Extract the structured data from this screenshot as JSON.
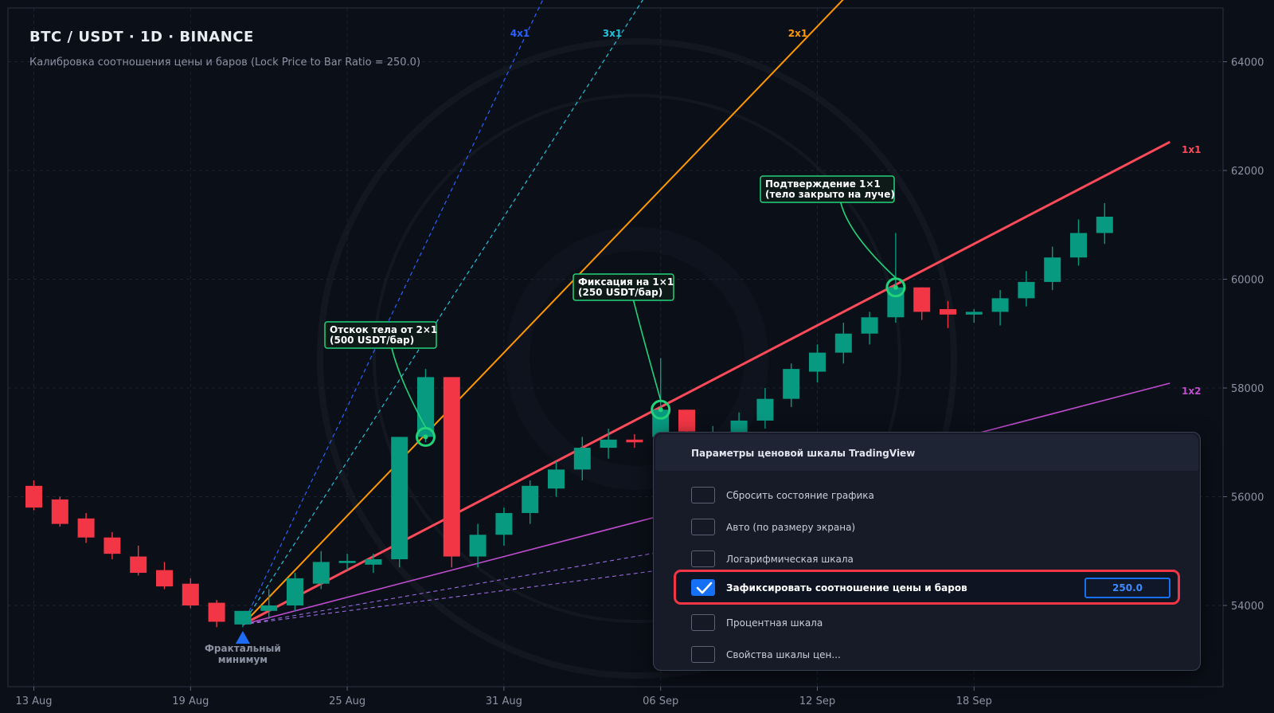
{
  "header": {
    "title": "BTC / USDT  ·  1D  ·  BINANCE",
    "subtitle": "Калибровка соотношения цены и баров (Lock Price to Bar Ratio = 250.0)"
  },
  "chart_data": {
    "type": "candlestick",
    "symbol": "BTC / USDT",
    "interval": "1D",
    "exchange": "BINANCE",
    "y_ticks": [
      54000,
      56000,
      58000,
      60000,
      62000,
      64000
    ],
    "ylim": [
      52600,
      65000
    ],
    "x_ticks": [
      "13 Aug",
      "19 Aug",
      "25 Aug",
      "31 Aug",
      "06 Sep",
      "12 Sep",
      "18 Sep"
    ],
    "x_tick_index": [
      0,
      6,
      12,
      18,
      24,
      30,
      36
    ],
    "candles": [
      {
        "o": 56200,
        "h": 56300,
        "l": 55750,
        "c": 55800
      },
      {
        "o": 55950,
        "h": 56000,
        "l": 55450,
        "c": 55500
      },
      {
        "o": 55600,
        "h": 55700,
        "l": 55150,
        "c": 55250
      },
      {
        "o": 55250,
        "h": 55350,
        "l": 54850,
        "c": 54950
      },
      {
        "o": 54900,
        "h": 55100,
        "l": 54550,
        "c": 54600
      },
      {
        "o": 54650,
        "h": 54800,
        "l": 54300,
        "c": 54350
      },
      {
        "o": 54400,
        "h": 54500,
        "l": 53950,
        "c": 54000
      },
      {
        "o": 54050,
        "h": 54100,
        "l": 53600,
        "c": 53700
      },
      {
        "o": 53650,
        "h": 53900,
        "l": 53600,
        "c": 53900
      },
      {
        "o": 53900,
        "h": 54300,
        "l": 53750,
        "c": 54000
      },
      {
        "o": 54000,
        "h": 54600,
        "l": 53900,
        "c": 54500
      },
      {
        "o": 54400,
        "h": 55000,
        "l": 54300,
        "c": 54800
      },
      {
        "o": 54780,
        "h": 54950,
        "l": 54650,
        "c": 54820
      },
      {
        "o": 54750,
        "h": 54950,
        "l": 54600,
        "c": 54850
      },
      {
        "o": 54850,
        "h": 57100,
        "l": 54700,
        "c": 57100
      },
      {
        "o": 57100,
        "h": 58350,
        "l": 57000,
        "c": 58200
      },
      {
        "o": 58200,
        "h": 58200,
        "l": 54700,
        "c": 54900
      },
      {
        "o": 54900,
        "h": 55500,
        "l": 54700,
        "c": 55300
      },
      {
        "o": 55300,
        "h": 55800,
        "l": 55100,
        "c": 55700
      },
      {
        "o": 55700,
        "h": 56300,
        "l": 55500,
        "c": 56200
      },
      {
        "o": 56150,
        "h": 56650,
        "l": 56000,
        "c": 56500
      },
      {
        "o": 56500,
        "h": 57100,
        "l": 56300,
        "c": 56900
      },
      {
        "o": 56900,
        "h": 57250,
        "l": 56700,
        "c": 57050
      },
      {
        "o": 57050,
        "h": 57150,
        "l": 56900,
        "c": 57000
      },
      {
        "o": 57100,
        "h": 58550,
        "l": 57000,
        "c": 57600
      },
      {
        "o": 57600,
        "h": 57600,
        "l": 57000,
        "c": 57200
      },
      {
        "o": 57050,
        "h": 57300,
        "l": 56950,
        "c": 57150
      },
      {
        "o": 57100,
        "h": 57550,
        "l": 57000,
        "c": 57400
      },
      {
        "o": 57400,
        "h": 58000,
        "l": 57250,
        "c": 57800
      },
      {
        "o": 57800,
        "h": 58450,
        "l": 57650,
        "c": 58350
      },
      {
        "o": 58300,
        "h": 58800,
        "l": 58100,
        "c": 58650
      },
      {
        "o": 58650,
        "h": 59200,
        "l": 58450,
        "c": 59000
      },
      {
        "o": 59000,
        "h": 59400,
        "l": 58800,
        "c": 59300
      },
      {
        "o": 59300,
        "h": 60850,
        "l": 59200,
        "c": 59850
      },
      {
        "o": 59850,
        "h": 59850,
        "l": 59250,
        "c": 59400
      },
      {
        "o": 59450,
        "h": 59600,
        "l": 59100,
        "c": 59350
      },
      {
        "o": 59350,
        "h": 59450,
        "l": 59200,
        "c": 59400
      },
      {
        "o": 59400,
        "h": 59800,
        "l": 59150,
        "c": 59650
      },
      {
        "o": 59650,
        "h": 60150,
        "l": 59500,
        "c": 59950
      },
      {
        "o": 59950,
        "h": 60600,
        "l": 59800,
        "c": 60400
      },
      {
        "o": 60400,
        "h": 61100,
        "l": 60250,
        "c": 60850
      },
      {
        "o": 60850,
        "h": 61400,
        "l": 60650,
        "c": 61150
      }
    ],
    "gann_fan": {
      "origin_index": 8,
      "origin_price": 53650,
      "price_per_bar": 250.0,
      "rays": [
        {
          "label": "4x1",
          "mult": 4,
          "color": "#2962ff",
          "style": "dashed",
          "width": 1.2,
          "end_index": 19.5
        },
        {
          "label": "3x1",
          "mult": 3,
          "color": "#22c3dc",
          "style": "dashed",
          "width": 1.2,
          "end_index": 23.5
        },
        {
          "label": "2x1",
          "mult": 2,
          "color": "#ff9800",
          "style": "solid",
          "width": 2,
          "end_index": 31
        },
        {
          "label": "1x1",
          "mult": 1,
          "color": "#ff4a5a",
          "style": "solid",
          "width": 3,
          "end_index": 43.5
        },
        {
          "label": "1x2",
          "mult": 0.5,
          "color": "#c04ccf",
          "style": "solid",
          "width": 1.6,
          "end_index": 43.5
        },
        {
          "label": "",
          "mult": 0.333,
          "color": "#9b6ae0",
          "style": "dashed",
          "width": 1.1,
          "end_index": 24
        },
        {
          "label": "",
          "mult": 0.25,
          "color": "#9b6ae0",
          "style": "dashed",
          "width": 1.1,
          "end_index": 24
        }
      ]
    },
    "annotations": [
      {
        "line1": "Отскок тела от 2×1",
        "line2": "(500 USDT/бар)",
        "index": 15,
        "price": 57100,
        "box_x": 408,
        "box_y": 404,
        "box_w": 140,
        "box_h": 33
      },
      {
        "line1": "Фиксация на 1×1",
        "line2": "(250 USDT/бар)",
        "index": 24,
        "price": 57600,
        "box_x": 720,
        "box_y": 344,
        "box_w": 126,
        "box_h": 33
      },
      {
        "line1": "Подтверждение 1×1",
        "line2": "(тело закрыто на луче)",
        "index": 33,
        "price": 59850,
        "box_x": 955,
        "box_y": 221,
        "box_w": 168,
        "box_h": 33
      }
    ],
    "fractal_label": [
      "Фрактальный",
      "минимум"
    ],
    "colors": {
      "up": "#089981",
      "down": "#f23645",
      "background": "#0b0f18",
      "grid": "#1b2232",
      "axis_text": "#8b93a3"
    },
    "grid": true
  },
  "panel": {
    "title": "Параметры ценовой шкалы TradingView",
    "options": [
      {
        "label": "Сбросить состояние графика",
        "checked": false
      },
      {
        "label": "Авто (по размеру экрана)",
        "checked": false
      },
      {
        "label": "Логарифмическая шкала",
        "checked": false
      },
      {
        "label": "Зафиксировать соотношение цены и баров",
        "checked": true,
        "value": "250.0"
      },
      {
        "label": "Процентная шкала",
        "checked": false
      },
      {
        "label": "Свойства шкалы цен...",
        "checked": false
      }
    ]
  }
}
